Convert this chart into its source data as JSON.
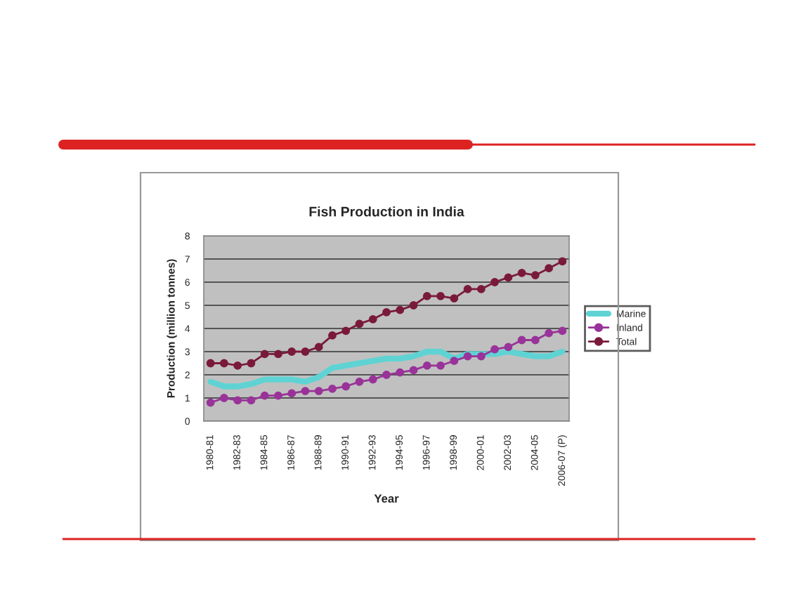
{
  "chart_data": {
    "type": "line",
    "title": "Fish Production in India",
    "xlabel": "Year",
    "ylabel": "Production (million tonnes)",
    "categories": [
      "1980-81",
      null,
      "1982-83",
      null,
      "1984-85",
      null,
      "1986-87",
      null,
      "1988-89",
      null,
      "1990-91",
      null,
      "1992-93",
      null,
      "1994-95",
      null,
      "1996-97",
      null,
      "1998-99",
      null,
      "2000-01",
      null,
      "2002-03",
      null,
      "2004-05",
      null,
      "2006-07 (P)"
    ],
    "series": [
      {
        "name": "Marine",
        "color": "#5fd3d3",
        "marker": "none",
        "values": [
          1.7,
          1.5,
          1.5,
          1.6,
          1.8,
          1.8,
          1.8,
          1.7,
          1.9,
          2.3,
          2.4,
          2.5,
          2.6,
          2.7,
          2.7,
          2.8,
          3.0,
          3.0,
          2.7,
          2.9,
          2.9,
          2.9,
          3.0,
          2.9,
          2.8,
          2.8,
          3.0
        ]
      },
      {
        "name": "Inland",
        "color": "#993399",
        "marker": "circle",
        "values": [
          0.8,
          1.0,
          0.9,
          0.9,
          1.1,
          1.1,
          1.2,
          1.3,
          1.3,
          1.4,
          1.5,
          1.7,
          1.8,
          2.0,
          2.1,
          2.2,
          2.4,
          2.4,
          2.6,
          2.8,
          2.8,
          3.1,
          3.2,
          3.5,
          3.5,
          3.8,
          3.9
        ]
      },
      {
        "name": "Total",
        "color": "#7a1a3a",
        "marker": "circle",
        "values": [
          2.5,
          2.5,
          2.4,
          2.5,
          2.9,
          2.9,
          3.0,
          3.0,
          3.2,
          3.7,
          3.9,
          4.2,
          4.4,
          4.7,
          4.8,
          5.0,
          5.4,
          5.4,
          5.3,
          5.7,
          5.7,
          6.0,
          6.2,
          6.4,
          6.3,
          6.6,
          6.9
        ]
      }
    ],
    "ylim": [
      0,
      8
    ],
    "yticks": [
      0,
      1,
      2,
      3,
      4,
      5,
      6,
      7,
      8
    ],
    "grid": "y",
    "legend": "right",
    "line_style": "solid"
  }
}
